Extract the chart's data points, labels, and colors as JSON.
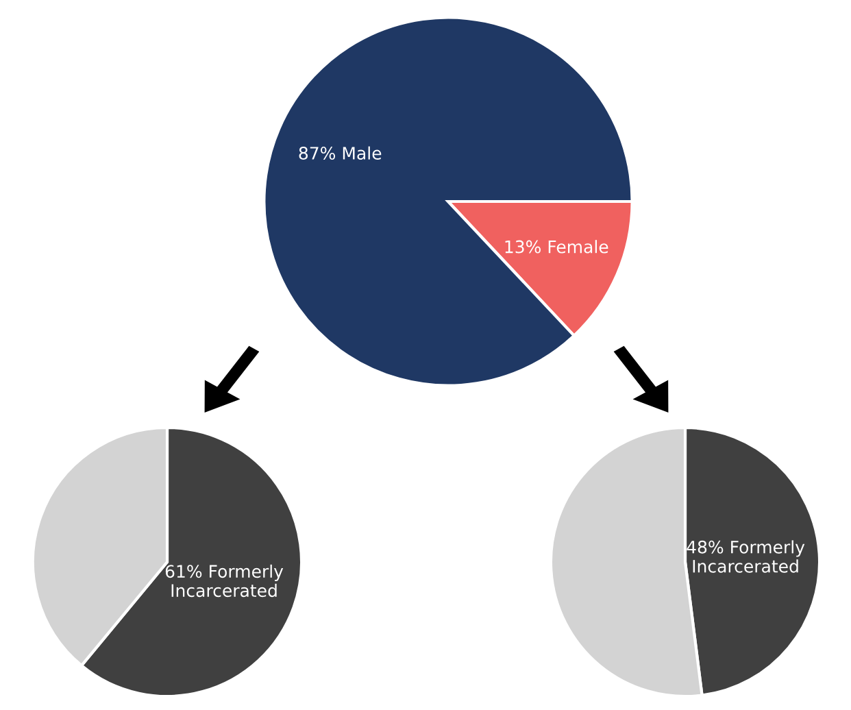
{
  "chart_data": [
    {
      "type": "pie",
      "categories": [
        "13% Female",
        "87% Male"
      ],
      "values": [
        13,
        87
      ],
      "colors": [
        "#f0615f",
        "#1f3864"
      ]
    },
    {
      "type": "pie",
      "categories": [
        "61% Formerly\nIncarcerated",
        null
      ],
      "values": [
        61,
        39
      ],
      "colors": [
        "#404040",
        "#d3d3d3"
      ]
    },
    {
      "type": "pie",
      "categories": [
        "48% Formerly\nIncarcerated",
        null
      ],
      "values": [
        48,
        52
      ],
      "colors": [
        "#404040",
        "#d3d3d3"
      ]
    }
  ]
}
